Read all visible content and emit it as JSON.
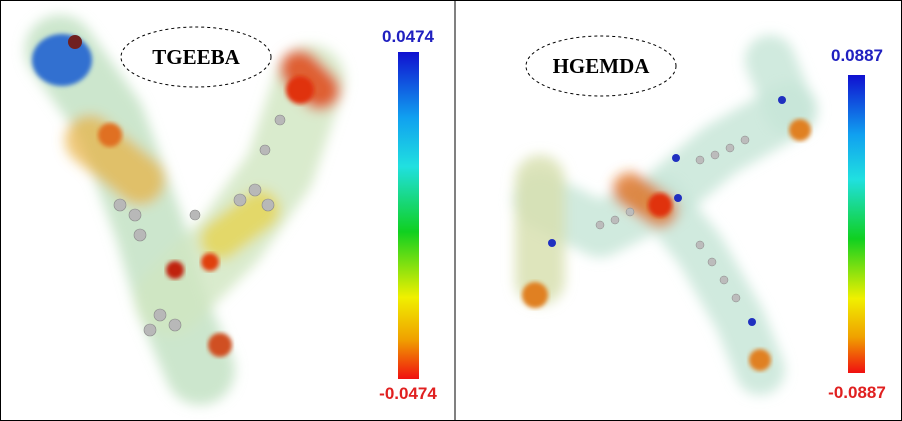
{
  "panels": [
    {
      "label": "TGEEBA",
      "scale_max": "0.0474",
      "scale_min": "-0.0474"
    },
    {
      "label": "HGEMDA",
      "scale_max": "0.0887",
      "scale_min": "-0.0887"
    }
  ]
}
